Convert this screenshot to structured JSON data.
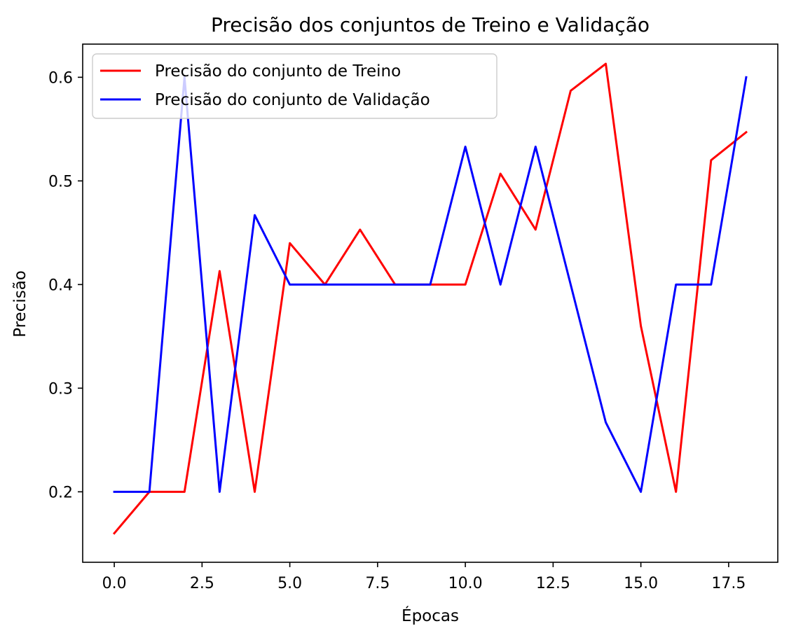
{
  "chart_data": {
    "type": "line",
    "title": "Precisão dos conjuntos de Treino e Validação",
    "xlabel": "Épocas",
    "ylabel": "Precisão",
    "xlim": [
      -0.9,
      18.9
    ],
    "ylim": [
      0.132,
      0.632
    ],
    "xticks": [
      0.0,
      2.5,
      5.0,
      7.5,
      10.0,
      12.5,
      15.0,
      17.5
    ],
    "xtick_labels": [
      "0.0",
      "2.5",
      "5.0",
      "7.5",
      "10.0",
      "12.5",
      "15.0",
      "17.5"
    ],
    "yticks": [
      0.2,
      0.3,
      0.4,
      0.5,
      0.6
    ],
    "ytick_labels": [
      "0.2",
      "0.3",
      "0.4",
      "0.5",
      "0.6"
    ],
    "grid": false,
    "legend_position": "upper-left",
    "x": [
      0,
      1,
      2,
      3,
      4,
      5,
      6,
      7,
      8,
      9,
      10,
      11,
      12,
      13,
      14,
      15,
      16,
      17,
      18
    ],
    "series": [
      {
        "name": "Precisão do conjunto de Treino",
        "color": "#ff0000",
        "values": [
          0.16,
          0.2,
          0.2,
          0.413,
          0.2,
          0.44,
          0.4,
          0.453,
          0.4,
          0.4,
          0.4,
          0.507,
          0.453,
          0.587,
          0.613,
          0.36,
          0.2,
          0.52,
          0.547
        ]
      },
      {
        "name": "Precisão do conjunto de Validação",
        "color": "#0000ff",
        "values": [
          0.2,
          0.2,
          0.6,
          0.2,
          0.467,
          0.4,
          0.4,
          0.4,
          0.4,
          0.4,
          0.533,
          0.4,
          0.533,
          0.4,
          0.267,
          0.2,
          0.4,
          0.4,
          0.6
        ]
      }
    ]
  }
}
